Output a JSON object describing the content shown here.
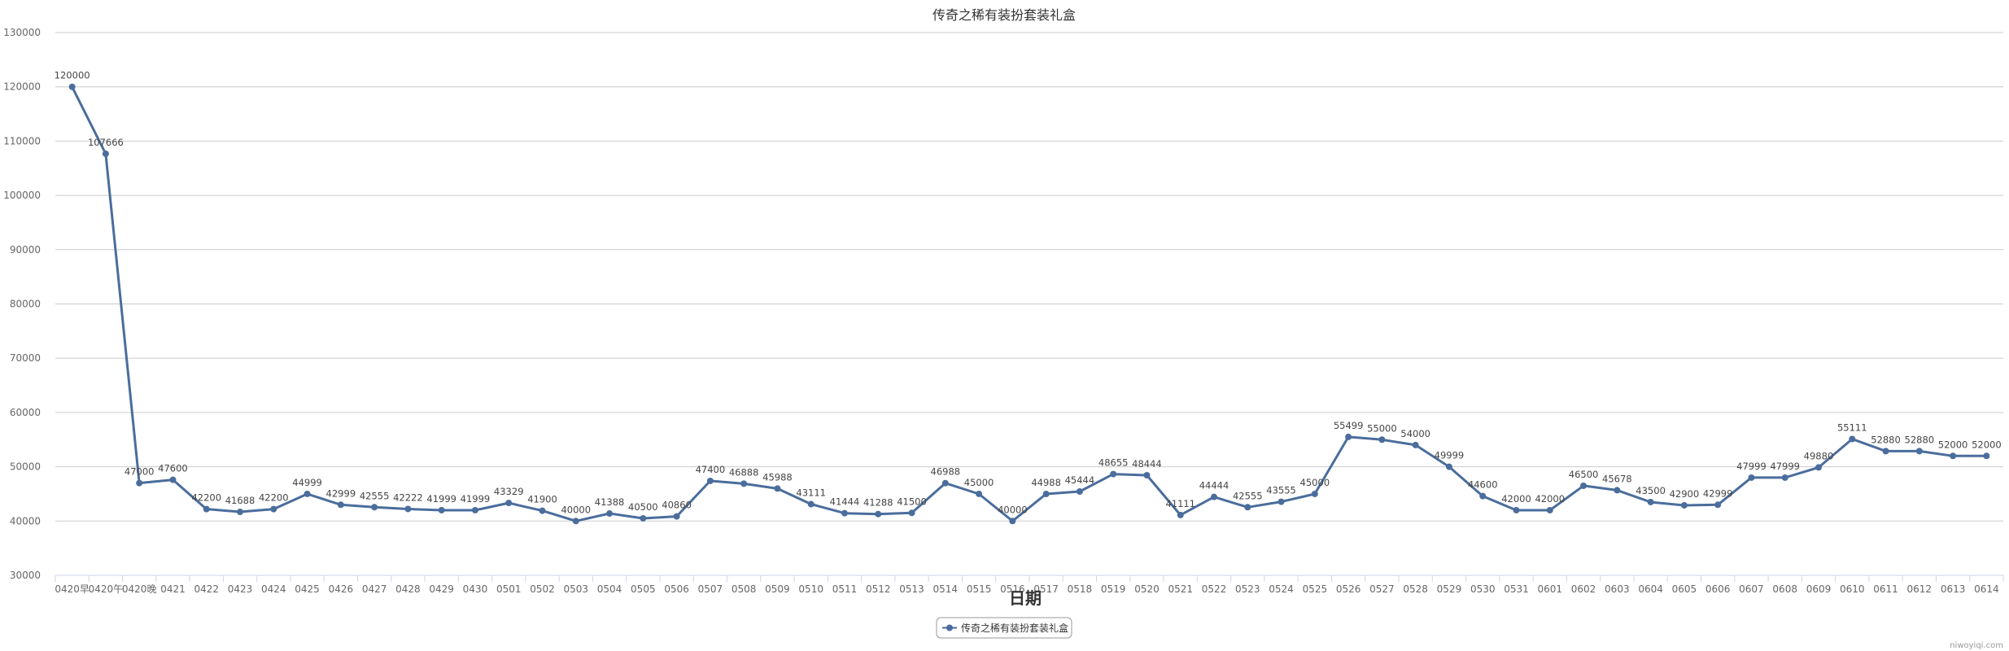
{
  "chart_data": {
    "type": "line",
    "title": "传奇之稀有装扮套装礼盒",
    "xlabel": "日期",
    "ylabel": "",
    "ylim": [
      30000,
      130000
    ],
    "y_ticks": [
      30000,
      40000,
      50000,
      60000,
      70000,
      80000,
      90000,
      100000,
      110000,
      120000,
      130000
    ],
    "grid": true,
    "legend_position": "bottom-center",
    "categories": [
      "0420早",
      "0420午",
      "0420晚",
      "0421",
      "0422",
      "0423",
      "0424",
      "0425",
      "0426",
      "0427",
      "0428",
      "0429",
      "0430",
      "0501",
      "0502",
      "0503",
      "0504",
      "0505",
      "0506",
      "0507",
      "0508",
      "0509",
      "0510",
      "0511",
      "0512",
      "0513",
      "0514",
      "0515",
      "0516",
      "0517",
      "0518",
      "0519",
      "0520",
      "0521",
      "0522",
      "0523",
      "0524",
      "0525",
      "0526",
      "0527",
      "0528",
      "0529",
      "0530",
      "0531",
      "0601",
      "0602",
      "0603",
      "0604",
      "0605",
      "0606",
      "0607",
      "0608",
      "0609",
      "0610",
      "0611",
      "0612",
      "0613",
      "0614"
    ],
    "series": [
      {
        "name": "传奇之稀有装扮套装礼盒",
        "color": "#4a6d9c",
        "values": [
          120000,
          107666,
          47000,
          47600,
          42200,
          41688,
          42200,
          44999,
          42999,
          42555,
          42222,
          41999,
          41999,
          43329,
          41900,
          40000,
          41388,
          40500,
          40860,
          47400,
          46888,
          45988,
          43111,
          41444,
          41288,
          41500,
          46988,
          45000,
          40000,
          44988,
          45444,
          48655,
          48444,
          41111,
          44444,
          42555,
          43555,
          45000,
          55499,
          55000,
          54000,
          49999,
          44600,
          42000,
          42000,
          46500,
          45678,
          43500,
          42900,
          42999,
          47999,
          47999,
          49880,
          55111,
          52880,
          52880,
          52000,
          52000
        ]
      }
    ]
  },
  "credit": "niwoyiqi.com"
}
